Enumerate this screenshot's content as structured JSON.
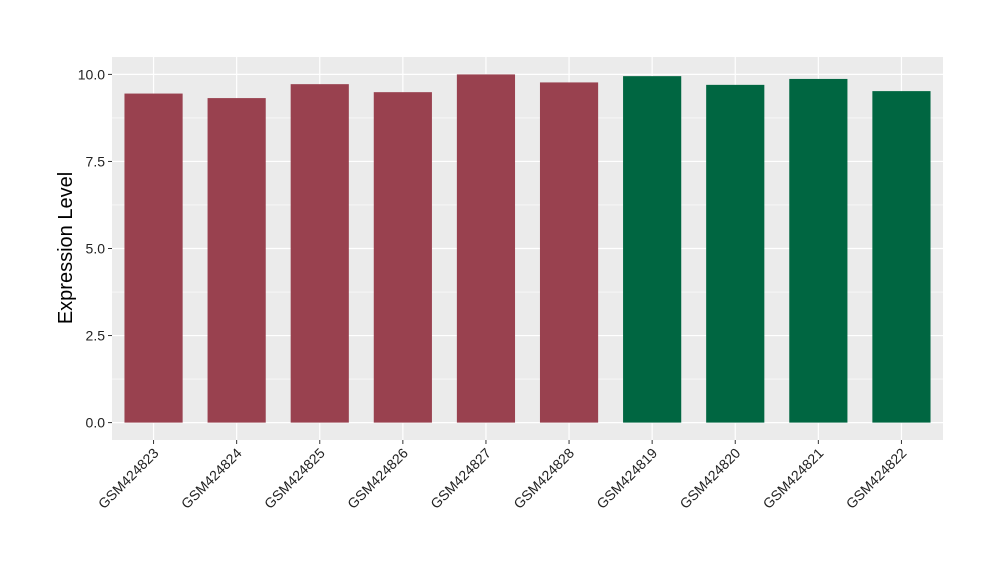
{
  "chart_data": {
    "type": "bar",
    "title": "",
    "xlabel": "",
    "ylabel": "Expression Level",
    "categories": [
      "GSM424823",
      "GSM424824",
      "GSM424825",
      "GSM424826",
      "GSM424827",
      "GSM424828",
      "GSM424819",
      "GSM424820",
      "GSM424821",
      "GSM424822"
    ],
    "values": [
      9.45,
      9.32,
      9.72,
      9.49,
      10.0,
      9.77,
      9.95,
      9.7,
      9.87,
      9.52
    ],
    "bar_colors": [
      "#99414F",
      "#99414F",
      "#99414F",
      "#99414F",
      "#99414F",
      "#99414F",
      "#006641",
      "#006641",
      "#006641",
      "#006641"
    ],
    "ylim": [
      -0.5,
      10.5
    ],
    "yticks": [
      0.0,
      2.5,
      5.0,
      7.5,
      10.0
    ],
    "ytick_labels": [
      "0.0",
      "2.5",
      "5.0",
      "7.5",
      "10.0"
    ],
    "grid": true,
    "panel_background": "#EBEBEB",
    "legend": "none"
  }
}
